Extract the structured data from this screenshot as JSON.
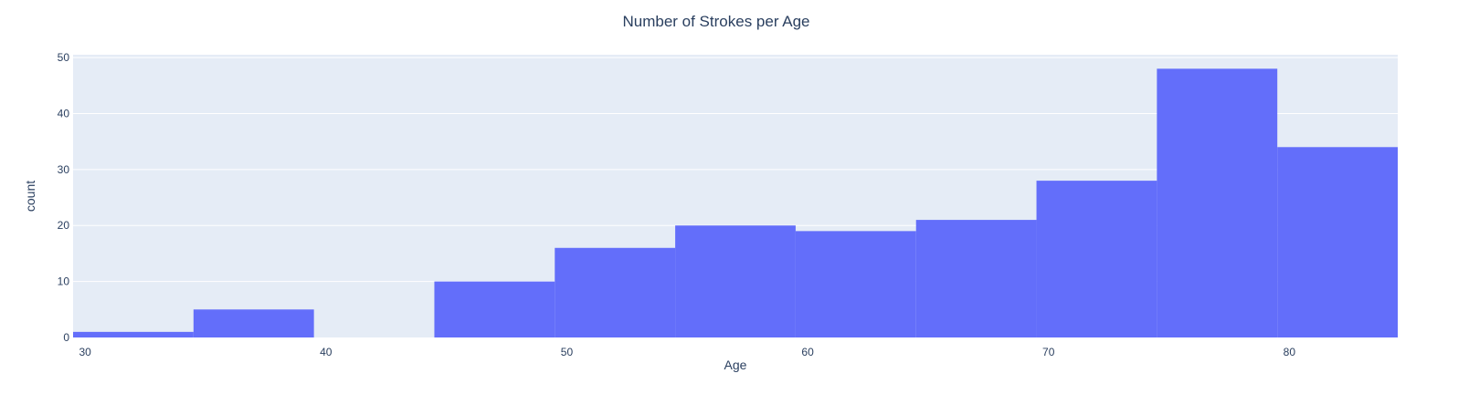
{
  "chart_data": {
    "type": "histogram",
    "title": "Number of Strokes per Age",
    "xlabel": "Age",
    "ylabel": "count",
    "bins": [
      {
        "start": 29.5,
        "end": 34.5,
        "count": 1
      },
      {
        "start": 34.5,
        "end": 39.5,
        "count": 5
      },
      {
        "start": 39.5,
        "end": 44.5,
        "count": 0
      },
      {
        "start": 44.5,
        "end": 49.5,
        "count": 10
      },
      {
        "start": 49.5,
        "end": 54.5,
        "count": 16
      },
      {
        "start": 54.5,
        "end": 59.5,
        "count": 20
      },
      {
        "start": 59.5,
        "end": 64.5,
        "count": 19
      },
      {
        "start": 64.5,
        "end": 69.5,
        "count": 21
      },
      {
        "start": 69.5,
        "end": 74.5,
        "count": 28
      },
      {
        "start": 74.5,
        "end": 79.5,
        "count": 48
      },
      {
        "start": 79.5,
        "end": 84.5,
        "count": 34
      }
    ],
    "xlim": [
      29.5,
      84.5
    ],
    "ylim": [
      0,
      50.5
    ],
    "xticks": [
      30,
      40,
      50,
      60,
      70,
      80
    ],
    "xtick_labels": [
      "30",
      "40",
      "50",
      "60",
      "70",
      "80"
    ],
    "yticks": [
      0,
      10,
      20,
      30,
      40,
      50
    ],
    "ytick_labels": [
      "0",
      "10",
      "20",
      "30",
      "40",
      "50"
    ],
    "grid": true,
    "colors": {
      "bar": "#636efa",
      "plot_bg": "#e5ecf6",
      "paper_bg": "#ffffff",
      "grid": "#ffffff",
      "text": "#2a3f5f"
    }
  }
}
